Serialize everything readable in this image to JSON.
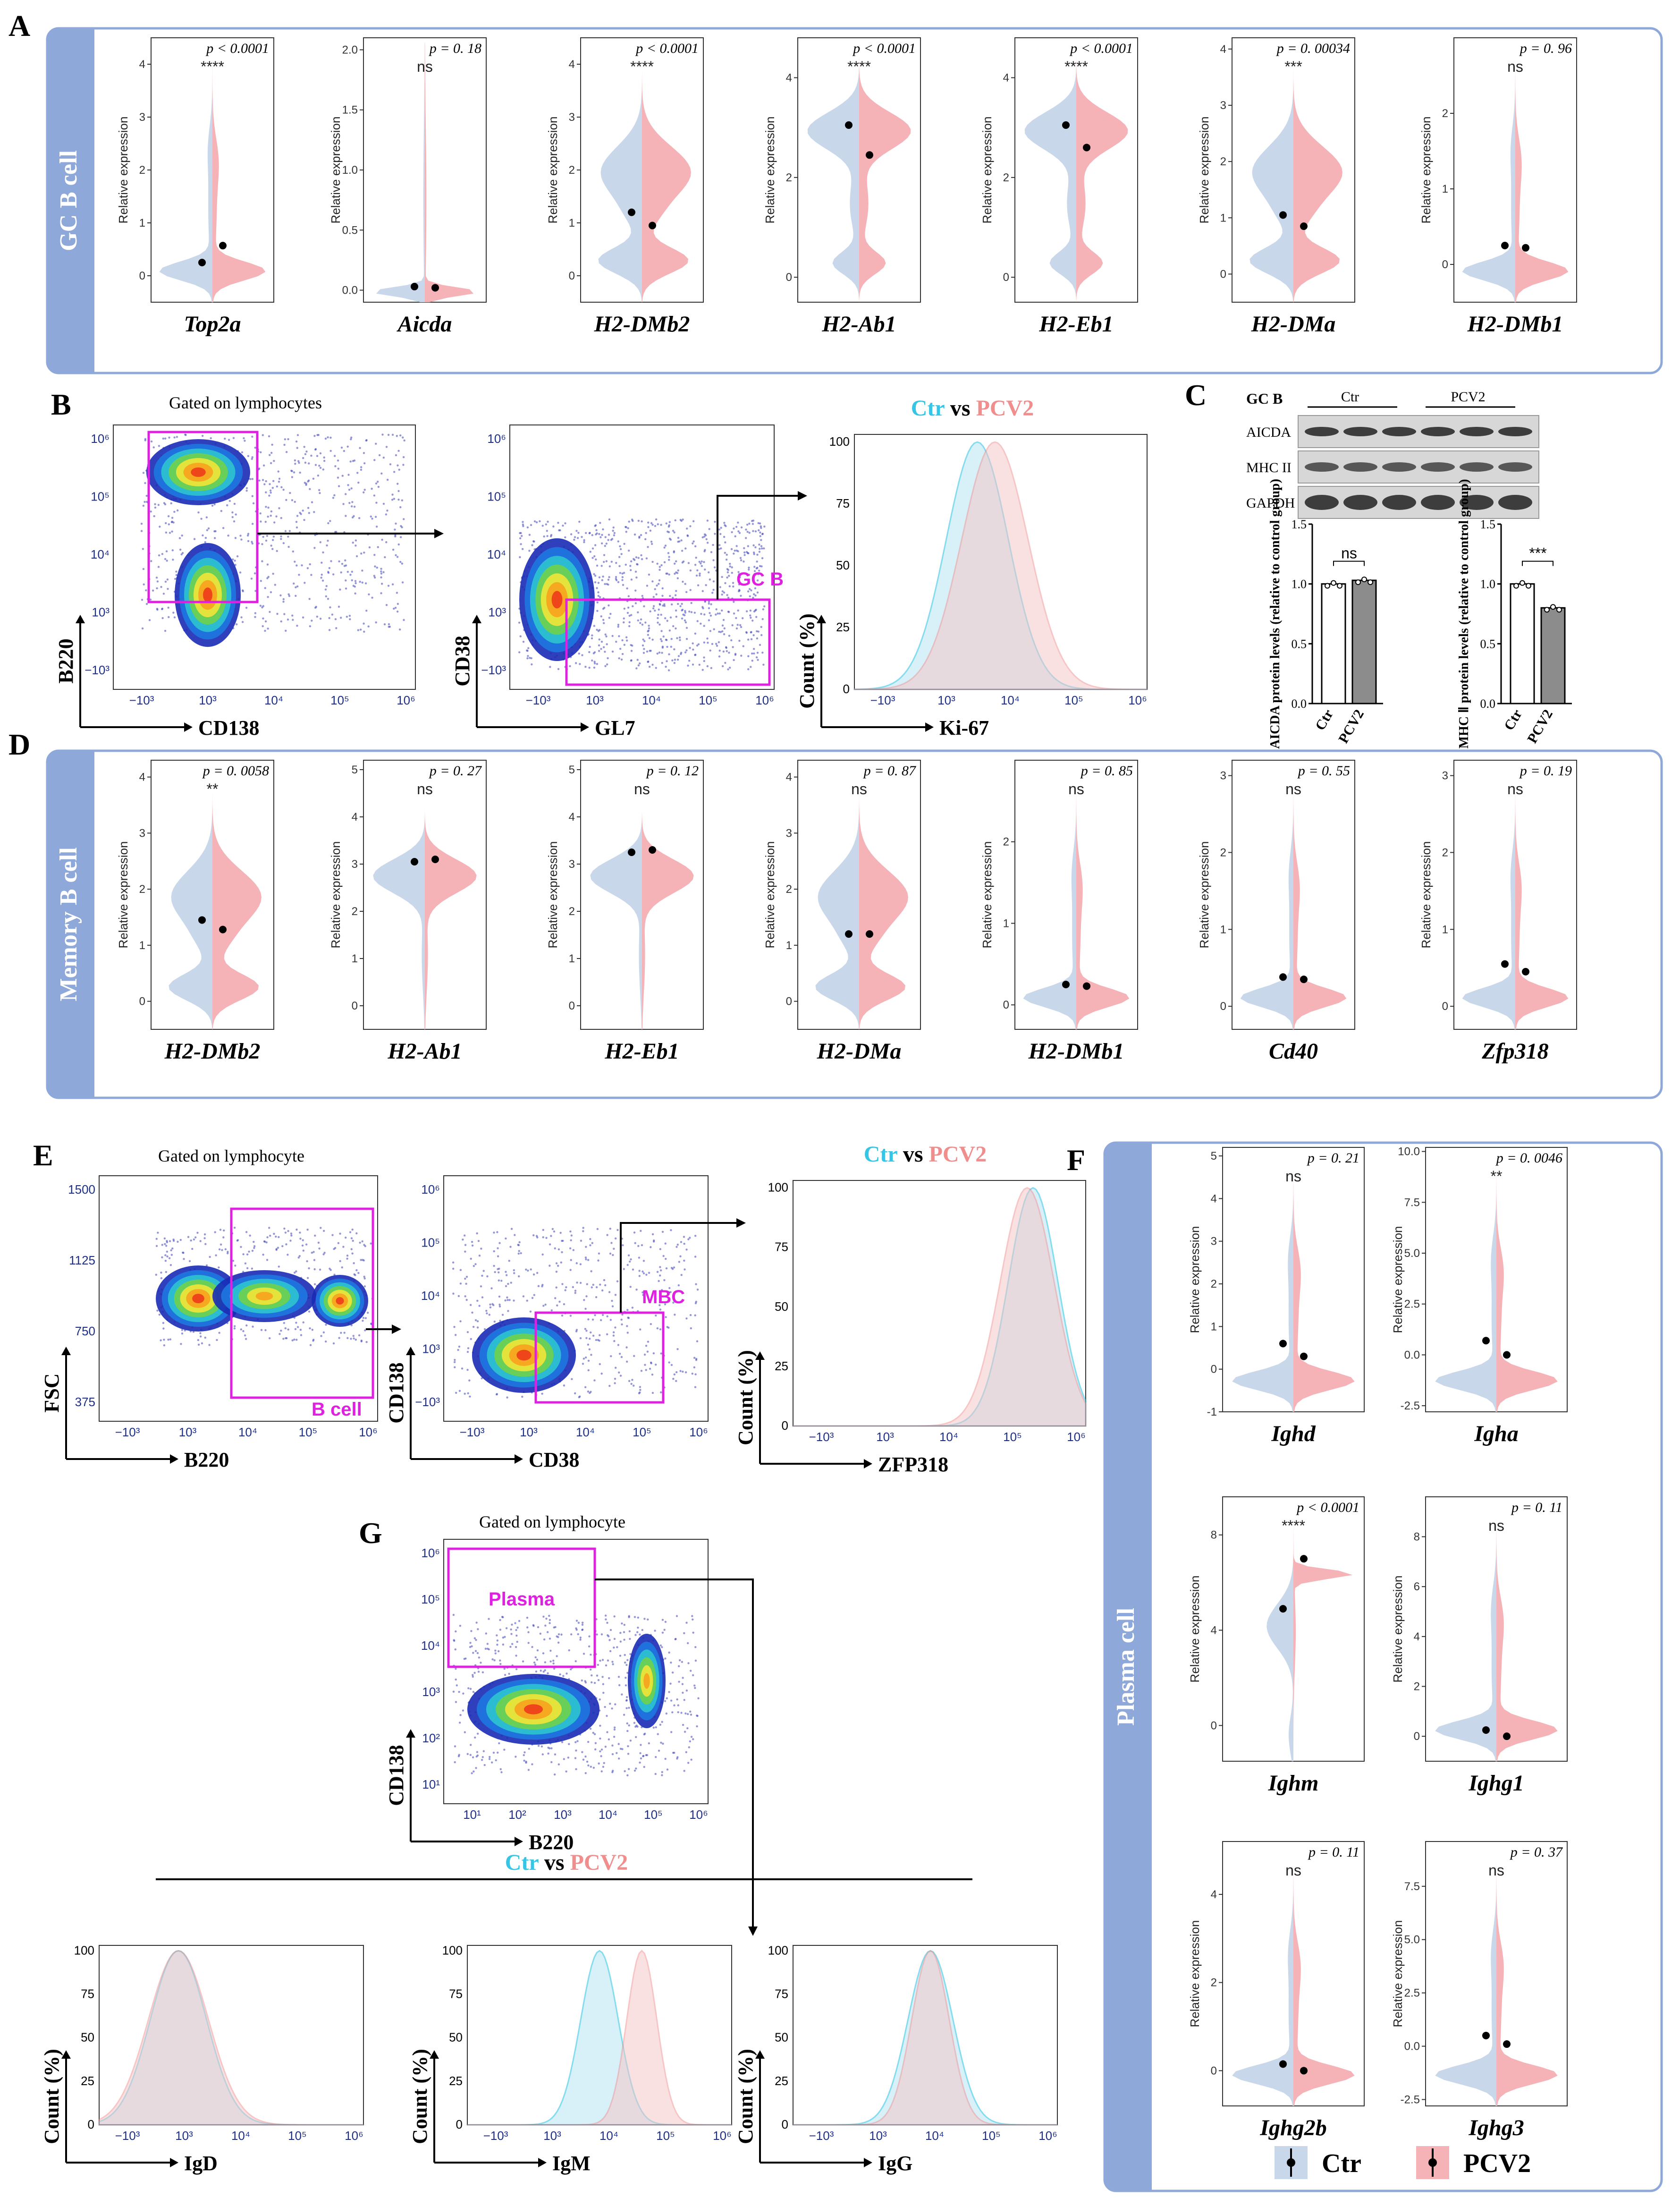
{
  "panel_labels": [
    "A",
    "B",
    "C",
    "D",
    "E",
    "F",
    "G"
  ],
  "colors": {
    "ctr": "#c9d7ea",
    "pcv2": "#f5b3b8",
    "ctr_line": "#35c5e6",
    "pcv2_line": "#f08d8d",
    "gate": "#e020e0",
    "box": "#8ea8da",
    "band": "#8ea8da"
  },
  "legend": {
    "ctr_label": "Ctr",
    "vs": "vs",
    "pcv2_label": "PCV2"
  },
  "groups": {
    "A": {
      "band_label": "GC B cell",
      "violins": [
        {
          "gene": "Top2a",
          "p": "p < 0.0001",
          "sig": "****",
          "ylim": [
            -0.5,
            4.5
          ],
          "ticks": [
            0,
            1,
            2,
            3,
            4
          ],
          "ctr_mean": 0.25,
          "pcv2_mean": 0.57,
          "shape": "spike"
        },
        {
          "gene": "Aicda",
          "p": "p = 0. 18",
          "sig": "ns",
          "ylim": [
            -0.1,
            2.1
          ],
          "ticks": [
            "0.0",
            "0.5",
            "1.0",
            "1.5",
            "2.0"
          ],
          "ctr_mean": 0.03,
          "pcv2_mean": 0.02,
          "shape": "flat"
        },
        {
          "gene": "H2-DMb2",
          "p": "p < 0.0001",
          "sig": "****",
          "ylim": [
            -0.5,
            4.5
          ],
          "ticks": [
            0,
            1,
            2,
            3,
            4
          ],
          "ctr_mean": 1.2,
          "pcv2_mean": 0.95,
          "shape": "bimodal"
        },
        {
          "gene": "H2-Ab1",
          "p": "p < 0.0001",
          "sig": "****",
          "ylim": [
            -0.5,
            4.8
          ],
          "ticks": [
            0,
            2,
            4
          ],
          "ctr_mean": 3.05,
          "pcv2_mean": 2.45,
          "shape": "top"
        },
        {
          "gene": "H2-Eb1",
          "p": "p < 0.0001",
          "sig": "****",
          "ylim": [
            -0.5,
            4.8
          ],
          "ticks": [
            0,
            2,
            4
          ],
          "ctr_mean": 3.05,
          "pcv2_mean": 2.6,
          "shape": "top"
        },
        {
          "gene": "H2-DMa",
          "p": "p = 0. 00034",
          "sig": "***",
          "ylim": [
            -0.5,
            4.2
          ],
          "ticks": [
            0,
            1,
            2,
            3,
            4
          ],
          "ctr_mean": 1.05,
          "pcv2_mean": 0.85,
          "shape": "bimodal"
        },
        {
          "gene": "H2-DMb1",
          "p": "p = 0. 96",
          "sig": "ns",
          "ylim": [
            -0.5,
            3.0
          ],
          "ticks": [
            0,
            1,
            2
          ],
          "ctr_mean": 0.25,
          "pcv2_mean": 0.22,
          "shape": "spike"
        }
      ]
    },
    "D": {
      "band_label": "Memory B cell",
      "violins": [
        {
          "gene": "H2-DMb2",
          "p": "p = 0. 0058",
          "sig": "**",
          "ylim": [
            -0.5,
            4.3
          ],
          "ticks": [
            0,
            1,
            2,
            3,
            4
          ],
          "ctr_mean": 1.45,
          "pcv2_mean": 1.28,
          "shape": "bimodal"
        },
        {
          "gene": "H2-Ab1",
          "p": "p = 0. 27",
          "sig": "ns",
          "ylim": [
            -0.5,
            5.2
          ],
          "ticks": [
            0,
            1,
            2,
            3,
            4,
            5
          ],
          "ctr_mean": 3.05,
          "pcv2_mean": 3.1,
          "shape": "topnarrow"
        },
        {
          "gene": "H2-Eb1",
          "p": "p = 0. 12",
          "sig": "ns",
          "ylim": [
            -0.5,
            5.2
          ],
          "ticks": [
            0,
            1,
            2,
            3,
            4,
            5
          ],
          "ctr_mean": 3.25,
          "pcv2_mean": 3.3,
          "shape": "topnarrow"
        },
        {
          "gene": "H2-DMa",
          "p": "p = 0. 87",
          "sig": "ns",
          "ylim": [
            -0.5,
            4.3
          ],
          "ticks": [
            0,
            1,
            2,
            3,
            4
          ],
          "ctr_mean": 1.2,
          "pcv2_mean": 1.2,
          "shape": "bimodal"
        },
        {
          "gene": "H2-DMb1",
          "p": "p = 0. 85",
          "sig": "ns",
          "ylim": [
            -0.3,
            3.0
          ],
          "ticks": [
            0,
            1,
            2
          ],
          "ctr_mean": 0.25,
          "pcv2_mean": 0.23,
          "shape": "spike"
        },
        {
          "gene": "Cd40",
          "p": "p = 0. 55",
          "sig": "ns",
          "ylim": [
            -0.3,
            3.2
          ],
          "ticks": [
            0,
            1,
            2,
            3
          ],
          "ctr_mean": 0.38,
          "pcv2_mean": 0.35,
          "shape": "spike"
        },
        {
          "gene": "Zfp318",
          "p": "p = 0. 19",
          "sig": "ns",
          "ylim": [
            -0.3,
            3.2
          ],
          "ticks": [
            0,
            1,
            2,
            3
          ],
          "ctr_mean": 0.55,
          "pcv2_mean": 0.45,
          "shape": "spike"
        }
      ]
    },
    "F": {
      "band_label": "Plasma cell",
      "violins": [
        {
          "gene": "Ighd",
          "p": "p = 0. 21",
          "sig": "ns",
          "ylim": [
            -1,
            5.2
          ],
          "ticks": [
            -1,
            0,
            1,
            2,
            3,
            4,
            5
          ],
          "ctr_mean": 0.6,
          "pcv2_mean": 0.3,
          "shape": "spike"
        },
        {
          "gene": "Igha",
          "p": "p = 0. 0046",
          "sig": "**",
          "ylim": [
            -2.8,
            10.2
          ],
          "ticks": [
            "-2.5",
            "0.0",
            "2.5",
            "5.0",
            "7.5",
            "10.0"
          ],
          "ctr_mean": 0.7,
          "pcv2_mean": 0.0,
          "shape": "spike"
        },
        {
          "gene": "Ighm",
          "p": "p < 0.0001",
          "sig": "****",
          "ylim": [
            -1.5,
            9.6
          ],
          "ticks": [
            0,
            4,
            8
          ],
          "ctr_mean": 4.9,
          "pcv2_mean": 7.0,
          "shape": "ighm"
        },
        {
          "gene": "Ighg1",
          "p": "p = 0. 11",
          "sig": "ns",
          "ylim": [
            -1,
            9.6
          ],
          "ticks": [
            0,
            2,
            4,
            6,
            8
          ],
          "ctr_mean": 0.25,
          "pcv2_mean": 0.0,
          "shape": "spike"
        },
        {
          "gene": "Ighg2b",
          "p": "p = 0. 11",
          "sig": "ns",
          "ylim": [
            -0.8,
            5.2
          ],
          "ticks": [
            0,
            2,
            4
          ],
          "ctr_mean": 0.15,
          "pcv2_mean": 0.0,
          "shape": "spike"
        },
        {
          "gene": "Ighg3",
          "p": "p = 0. 37",
          "sig": "ns",
          "ylim": [
            -2.8,
            9.6
          ],
          "ticks": [
            "-2.5",
            "0.0",
            "2.5",
            "5.0",
            "7.5"
          ],
          "ctr_mean": 0.5,
          "pcv2_mean": 0.1,
          "shape": "spike"
        }
      ]
    }
  },
  "violin_ylabel": "Relative expression",
  "flow": {
    "B": {
      "title": "Gated on lymphocytes",
      "plots": [
        {
          "x": "CD138",
          "y": "B220"
        },
        {
          "x": "GL7",
          "y": "CD38",
          "gate": "GC B"
        },
        {
          "x": "Ki-67",
          "y": "Count (%)"
        }
      ]
    },
    "E": {
      "title": "Gated on lymphocyte",
      "plots": [
        {
          "x": "B220",
          "y": "FSC",
          "gate": "B cell"
        },
        {
          "x": "CD38",
          "y": "CD138",
          "gate": "MBC"
        },
        {
          "x": "ZFP318",
          "y": "Count (%)"
        }
      ]
    },
    "G": {
      "title": "Gated on lymphocyte",
      "plot": {
        "x": "B220",
        "y": "CD138",
        "gate": "Plasma"
      },
      "hists": [
        {
          "x": "IgD",
          "y": "Count (%)"
        },
        {
          "x": "IgM",
          "y": "Count (%)"
        },
        {
          "x": "IgG",
          "y": "Count (%)"
        }
      ]
    },
    "log_ticks": [
      "−10³",
      "10³",
      "10⁴",
      "10⁵",
      "10⁶"
    ],
    "fsc_ticks": [
      "375",
      "750",
      "1125",
      "1500"
    ],
    "pct_ticks": [
      "0",
      "25",
      "50",
      "75",
      "100"
    ]
  },
  "chart_data": [
    {
      "type": "bar",
      "title": "AICDA",
      "categories": [
        "Ctr",
        "PCV2"
      ],
      "values": [
        1.0,
        1.03
      ],
      "ylim": [
        0,
        1.5
      ],
      "ylabel": "AICDA protein levels (relative to control group)",
      "sig": "ns"
    },
    {
      "type": "bar",
      "title": "MHC II",
      "categories": [
        "Ctr",
        "PCV2"
      ],
      "values": [
        1.0,
        0.8
      ],
      "ylim": [
        0,
        1.5
      ],
      "ylabel": "MHC Ⅱ protein levels (relative to control group)",
      "sig": "***"
    }
  ],
  "blot": {
    "header": "GC B",
    "groups": [
      "Ctr",
      "PCV2"
    ],
    "rows": [
      "AICDA",
      "MHC II",
      "GAPDH"
    ]
  },
  "bar_ticks": [
    "0.0",
    "0.5",
    "1.0",
    "1.5"
  ]
}
